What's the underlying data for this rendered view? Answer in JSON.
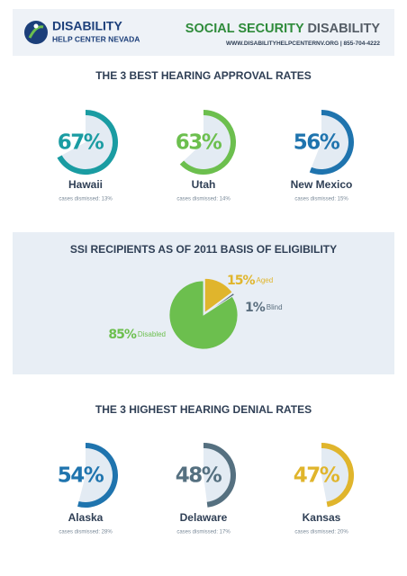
{
  "header": {
    "logo_line1": "DISABILITY",
    "logo_line2": "HELP CENTER NEVADA",
    "title_part1": "SOCIAL SECURITY",
    "title_part2": "DISABILITY",
    "website": "WWW.DISABILITYHELPCENTERNV.ORG",
    "separator": "|",
    "phone": "855-704-4222"
  },
  "chart_data": [
    {
      "type": "gauge",
      "title": "THE 3 BEST HEARING APPROVAL RATES",
      "categories": [
        "Hawaii",
        "Utah",
        "New Mexico"
      ],
      "values": [
        67,
        63,
        56
      ],
      "value_labels": [
        "67%",
        "63%",
        "56%"
      ],
      "notes": [
        "cases dismissed: 13%",
        "cases dismissed: 14%",
        "cases dismissed: 15%"
      ],
      "colors": [
        "#1a9ca2",
        "#6cbf4e",
        "#1f74ae"
      ]
    },
    {
      "type": "pie",
      "title": "SSI RECIPIENTS AS OF 2011 BASIS OF ELIGIBILITY",
      "categories": [
        "Aged",
        "Blind",
        "Disabled"
      ],
      "values": [
        15,
        1,
        85
      ],
      "value_labels": [
        "15%",
        "1%",
        "85%"
      ],
      "colors": [
        "#e0b52c",
        "#5a6e7e",
        "#6cbf4e"
      ]
    },
    {
      "type": "gauge",
      "title": "THE 3 HIGHEST HEARING DENIAL RATES",
      "categories": [
        "Alaska",
        "Delaware",
        "Kansas"
      ],
      "values": [
        54,
        48,
        47
      ],
      "value_labels": [
        "54%",
        "48%",
        "47%"
      ],
      "notes": [
        "cases dismissed: 28%",
        "cases dismissed: 17%",
        "cases dismissed: 20%"
      ],
      "colors": [
        "#1f74ae",
        "#557080",
        "#e0b52c"
      ]
    }
  ]
}
